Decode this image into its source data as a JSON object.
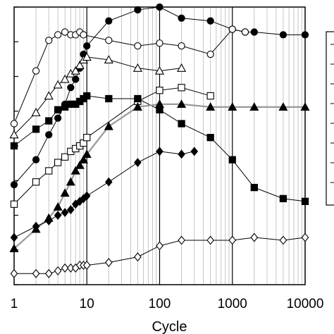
{
  "chart_data": {
    "type": "line",
    "xlabel": "Cycle",
    "ylabel": "",
    "x_scale": "log",
    "xlim": [
      1,
      10000
    ],
    "ylim": [
      0,
      100
    ],
    "grid": true,
    "x_tick_labels": [
      "1",
      "10",
      "100",
      "1000",
      "10000"
    ],
    "x_ticks": [
      1,
      10,
      100,
      1000,
      10000
    ],
    "legend": "right (cropped)",
    "series": [
      {
        "marker": "circle-filled",
        "color": "#000000",
        "x": [
          1,
          2,
          3,
          4,
          5,
          6,
          7,
          8,
          9,
          10,
          20,
          50,
          100,
          200,
          500,
          1000,
          1500,
          2000,
          5000,
          10000
        ],
        "y": [
          36,
          45,
          54,
          60,
          65,
          71,
          74,
          78,
          83,
          86,
          95,
          99,
          100,
          96,
          95,
          92,
          91,
          91,
          90,
          90
        ]
      },
      {
        "marker": "circle-open",
        "color": "#000000",
        "x": [
          1,
          2,
          3,
          4,
          5,
          6,
          7,
          8,
          9,
          20,
          50,
          100,
          200,
          500,
          1000,
          1500
        ],
        "y": [
          58,
          77,
          88,
          90,
          91,
          90,
          90,
          91,
          90,
          88,
          86,
          87,
          86,
          83,
          92,
          91
        ]
      },
      {
        "marker": "triangle-open",
        "color": "#000000",
        "x": [
          1,
          2,
          3,
          4,
          5,
          6,
          7,
          8,
          9,
          10,
          20,
          50,
          100,
          200
        ],
        "y": [
          54,
          62,
          68,
          72,
          74,
          76,
          77,
          79,
          81,
          82,
          81,
          78,
          77,
          78
        ]
      },
      {
        "marker": "square-open",
        "color": "#000000",
        "x": [
          1,
          2,
          3,
          4,
          5,
          6,
          7,
          8,
          9,
          10,
          50,
          100,
          200,
          500
        ],
        "y": [
          29,
          37,
          41,
          44,
          46,
          48,
          49,
          50,
          51,
          53,
          66,
          70,
          71,
          68
        ]
      },
      {
        "marker": "square-filled",
        "color": "#000000",
        "x": [
          1,
          2,
          3,
          4,
          5,
          6,
          7,
          8,
          9,
          10,
          20,
          50,
          100,
          200,
          500,
          1000,
          2000,
          5000,
          10000
        ],
        "y": [
          50,
          56,
          59,
          63,
          64,
          65,
          65,
          66,
          67,
          68,
          67,
          67,
          63,
          58,
          53,
          45,
          35,
          31,
          30
        ]
      },
      {
        "marker": "triangle-filled",
        "color": "#999999",
        "x": [
          1,
          2,
          3,
          4,
          5,
          6,
          7,
          8,
          9,
          10,
          20,
          50,
          100,
          200,
          500,
          1000,
          2000,
          5000,
          10000
        ],
        "y": [
          13,
          20,
          24,
          28,
          33,
          37,
          41,
          43,
          45,
          47,
          57,
          64,
          65,
          65,
          64,
          64,
          64,
          64,
          64
        ]
      },
      {
        "marker": "diamond-filled",
        "color": "#000000",
        "x": [
          1,
          2,
          3,
          4,
          5,
          6,
          7,
          8,
          9,
          10,
          20,
          50,
          100,
          200,
          300
        ],
        "y": [
          17,
          21,
          23,
          25,
          26,
          27,
          29,
          30,
          31,
          32,
          37,
          44,
          48,
          47,
          48
        ]
      },
      {
        "marker": "diamond-open",
        "color": "#000000",
        "x": [
          1,
          2,
          3,
          4,
          5,
          6,
          7,
          8,
          9,
          10,
          20,
          50,
          100,
          200,
          500,
          1000,
          2000,
          5000,
          10000
        ],
        "y": [
          4,
          4,
          4,
          5,
          6,
          6,
          6,
          7,
          7,
          7,
          8,
          10,
          14,
          16,
          16,
          16,
          17,
          16,
          17
        ]
      }
    ]
  }
}
